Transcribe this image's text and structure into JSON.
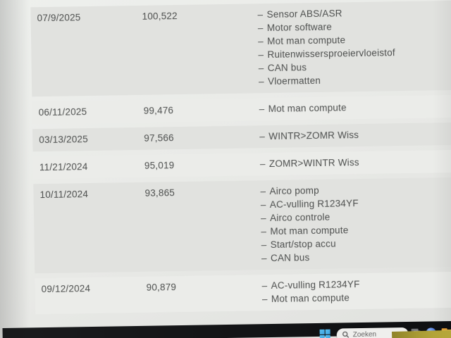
{
  "table": {
    "bullet": "–",
    "rows": [
      {
        "date": "07/9/2025",
        "mileage": "100,522",
        "shaded": true,
        "items": [
          "Sensor ABS/ASR",
          "Motor software",
          "Mot man compute",
          "Ruitenwissersproeiervloeistof",
          "CAN bus",
          "Vloermatten"
        ]
      },
      {
        "date": "06/11/2025",
        "mileage": "99,476",
        "shaded": false,
        "items": [
          "Mot man compute"
        ]
      },
      {
        "date": "03/13/2025",
        "mileage": "97,566",
        "shaded": true,
        "items": [
          "WINTR>ZOMR Wiss"
        ]
      },
      {
        "date": "11/21/2024",
        "mileage": "95,019",
        "shaded": false,
        "items": [
          "ZOMR>WINTR Wiss"
        ]
      },
      {
        "date": "10/11/2024",
        "mileage": "93,865",
        "shaded": true,
        "items": [
          "Airco pomp",
          "AC-vulling R1234YF",
          "Airco controle",
          "Mot man compute",
          "Start/stop accu",
          "CAN bus"
        ]
      },
      {
        "date": "09/12/2024",
        "mileage": "90,879",
        "shaded": false,
        "items": [
          "AC-vulling R1234YF",
          "Mot man compute"
        ]
      }
    ]
  },
  "taskbar": {
    "search": {
      "placeholder": "Zoeken"
    },
    "icons": [
      "windows-start-icon",
      "search-icon",
      "task-view-icon",
      "teams-icon",
      "file-explorer-icon",
      "edge-icon"
    ]
  },
  "colors": {
    "screen_bg": "#e8e9e6",
    "row_shaded": "#e1e2df",
    "row_plain": "#ebece9",
    "text": "#4d4f4e",
    "taskbar_bg": "#141517",
    "search_pill": "#efefed",
    "search_text": "#636363",
    "windows_blue": "#3ba2e0",
    "folder_yellow": "#f0bf4e",
    "note_yellow": "#a89a33"
  }
}
